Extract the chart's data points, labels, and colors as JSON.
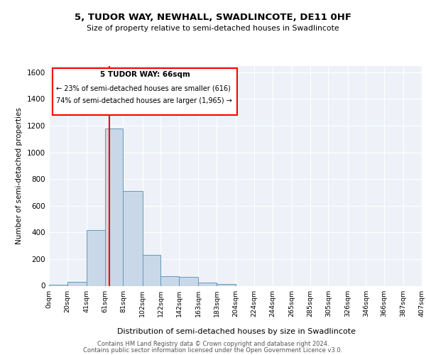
{
  "title": "5, TUDOR WAY, NEWHALL, SWADLINCOTE, DE11 0HF",
  "subtitle": "Size of property relative to semi-detached houses in Swadlincote",
  "xlabel": "Distribution of semi-detached houses by size in Swadlincote",
  "ylabel": "Number of semi-detached properties",
  "footer_line1": "Contains HM Land Registry data © Crown copyright and database right 2024.",
  "footer_line2": "Contains public sector information licensed under the Open Government Licence v3.0.",
  "property_size": 66,
  "property_label": "5 TUDOR WAY: 66sqm",
  "annotation_line1": "← 23% of semi-detached houses are smaller (616)",
  "annotation_line2": "74% of semi-detached houses are larger (1,965) →",
  "bin_edges": [
    0,
    20,
    41,
    61,
    81,
    102,
    122,
    142,
    163,
    183,
    204,
    224,
    244,
    265,
    285,
    305,
    326,
    346,
    366,
    387,
    407
  ],
  "bin_counts": [
    10,
    30,
    420,
    1180,
    710,
    230,
    70,
    65,
    25,
    15,
    0,
    0,
    0,
    0,
    0,
    0,
    0,
    0,
    0,
    0
  ],
  "bar_color": "#c8d8e8",
  "bar_edge_color": "#6699bb",
  "red_line_x": 66,
  "ylim": [
    0,
    1650
  ],
  "yticks": [
    0,
    200,
    400,
    600,
    800,
    1000,
    1200,
    1400,
    1600
  ],
  "background_color": "#eef2f8",
  "plot_background": "#eef2f8",
  "grid_color": "#ffffff",
  "tick_labels": [
    "0sqm",
    "20sqm",
    "41sqm",
    "61sqm",
    "81sqm",
    "102sqm",
    "122sqm",
    "142sqm",
    "163sqm",
    "183sqm",
    "204sqm",
    "224sqm",
    "244sqm",
    "265sqm",
    "285sqm",
    "305sqm",
    "326sqm",
    "346sqm",
    "366sqm",
    "387sqm",
    "407sqm"
  ]
}
